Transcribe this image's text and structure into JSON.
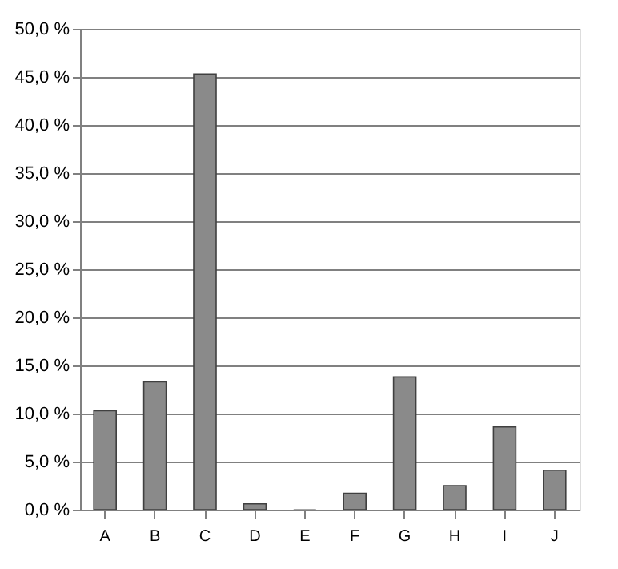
{
  "chart_data": {
    "type": "bar",
    "categories": [
      "A",
      "B",
      "C",
      "D",
      "E",
      "F",
      "G",
      "H",
      "I",
      "J"
    ],
    "values": [
      10.3,
      13.3,
      45.3,
      0.6,
      0,
      1.7,
      13.8,
      2.5,
      8.6,
      4.1
    ],
    "color": "#8a8a8a",
    "ylim": [
      0,
      50
    ],
    "yticks": [
      {
        "value": 0,
        "label": "0,0 %"
      },
      {
        "value": 5,
        "label": "5,0 %"
      },
      {
        "value": 10,
        "label": "10,0 %"
      },
      {
        "value": 15,
        "label": "15,0 %"
      },
      {
        "value": 20,
        "label": "20,0 %"
      },
      {
        "value": 25,
        "label": "25,0 %"
      },
      {
        "value": 30,
        "label": "30,0 %"
      },
      {
        "value": 35,
        "label": "35,0 %"
      },
      {
        "value": 40,
        "label": "40,0 %"
      },
      {
        "value": 45,
        "label": "45,0 %"
      },
      {
        "value": 50,
        "label": "50,0 %"
      }
    ],
    "grid": "y"
  }
}
